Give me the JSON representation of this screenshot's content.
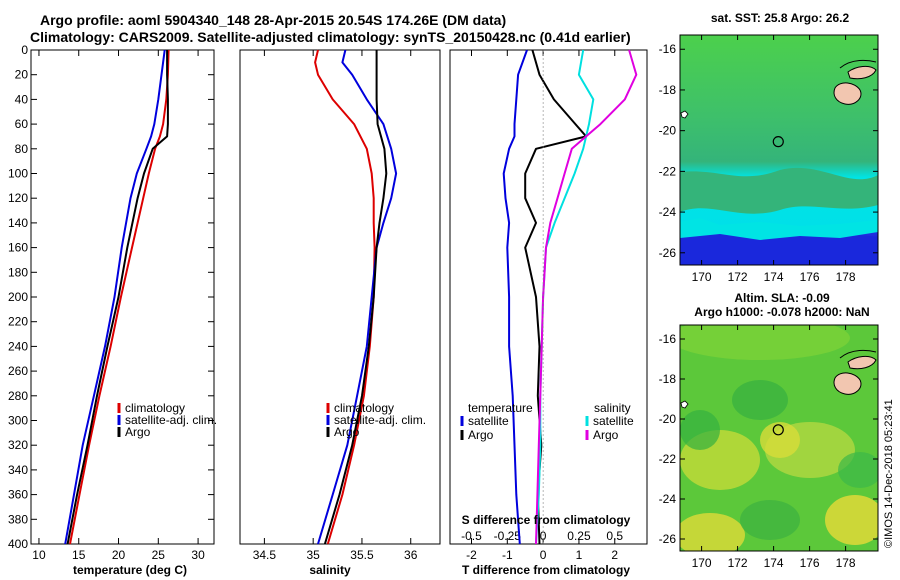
{
  "header": {
    "title_line1": "Argo profile: aoml 5904340_148 28-Apr-2015 20.54S 174.26E (DM data)",
    "title_line2": "Climatology: CARS2009. Satellite-adjusted climatology: synTS_20150428.nc (0.41d earlier)"
  },
  "colors": {
    "climatology": "#dd0000",
    "satellite": "#0000dd",
    "argo": "#000000",
    "sat_salinity": "#00e0e0",
    "argo_salinity_diff": "#e000e0"
  },
  "chart_data": [
    {
      "type": "line",
      "name": "temperature-profile",
      "xlabel": "temperature (deg C)",
      "ylabel": "",
      "xlim": [
        9,
        32
      ],
      "ylim": [
        400,
        0
      ],
      "xticks": [
        10,
        15,
        20,
        25,
        30
      ],
      "yticks": [
        0,
        20,
        40,
        60,
        80,
        100,
        120,
        140,
        160,
        180,
        200,
        220,
        240,
        260,
        280,
        300,
        320,
        340,
        360,
        380,
        400
      ],
      "legend": [
        "climatology",
        "satellite-adj. clim.",
        "Argo"
      ],
      "legend_position": "lower-right",
      "depth": [
        0,
        20,
        40,
        60,
        70,
        80,
        100,
        120,
        160,
        200,
        240,
        280,
        320,
        360,
        400
      ],
      "series": [
        {
          "name": "climatology",
          "color": "#dd0000",
          "x": [
            26.3,
            26.2,
            26.0,
            25.6,
            25.2,
            24.6,
            23.8,
            23.1,
            21.7,
            20.3,
            19.0,
            17.6,
            16.3,
            15.1,
            13.9
          ]
        },
        {
          "name": "satellite-adj. clim.",
          "color": "#0000dd",
          "x": [
            25.8,
            25.4,
            25.0,
            24.5,
            24.1,
            23.5,
            22.3,
            21.5,
            20.4,
            19.5,
            18.3,
            16.9,
            15.5,
            14.4,
            13.3
          ]
        },
        {
          "name": "Argo",
          "color": "#000000",
          "x": [
            26.1,
            26.1,
            26.2,
            26.2,
            26.1,
            24.3,
            23.2,
            22.4,
            21.1,
            20.0,
            18.6,
            17.3,
            16.1,
            14.8,
            13.6
          ]
        }
      ]
    },
    {
      "type": "line",
      "name": "salinity-profile",
      "xlabel": "salinity",
      "ylabel": "",
      "xlim": [
        34.25,
        36.3
      ],
      "ylim": [
        400,
        0
      ],
      "xticks": [
        34.5,
        35,
        35.5,
        36
      ],
      "legend": [
        "climatology",
        "satellite-adj. clim.",
        "Argo"
      ],
      "legend_position": "lower-right",
      "depth": [
        0,
        10,
        20,
        40,
        60,
        80,
        100,
        120,
        140,
        160,
        200,
        240,
        280,
        320,
        360,
        400
      ],
      "series": [
        {
          "name": "climatology",
          "color": "#dd0000",
          "x": [
            35.05,
            35.02,
            35.05,
            35.2,
            35.42,
            35.55,
            35.6,
            35.62,
            35.62,
            35.63,
            35.62,
            35.58,
            35.52,
            35.42,
            35.3,
            35.15
          ]
        },
        {
          "name": "satellite-adj. clim.",
          "color": "#0000dd",
          "x": [
            35.33,
            35.3,
            35.4,
            35.55,
            35.72,
            35.8,
            35.85,
            35.8,
            35.72,
            35.65,
            35.6,
            35.55,
            35.45,
            35.35,
            35.2,
            35.05
          ]
        },
        {
          "name": "Argo",
          "color": "#000000",
          "x": [
            35.65,
            35.65,
            35.65,
            35.65,
            35.66,
            35.73,
            35.75,
            35.72,
            35.68,
            35.65,
            35.62,
            35.57,
            35.5,
            35.4,
            35.27,
            35.12
          ]
        }
      ]
    },
    {
      "type": "line",
      "name": "difference-profile",
      "xlabel": "T difference from climatology",
      "x2label": "S difference from climatology",
      "xlim": [
        -2.6,
        2.9
      ],
      "x2lim": [
        -0.65,
        0.725
      ],
      "ylim": [
        400,
        0
      ],
      "xticks": [
        -2,
        -1,
        0,
        1,
        2
      ],
      "x2ticks": [
        -0.5,
        -0.25,
        0,
        0.25,
        0.5
      ],
      "x2tick_labels": [
        "-0.5",
        "-0.25",
        "0",
        "0.25",
        "0.5"
      ],
      "legend_temperature": {
        "heading": "temperature",
        "items": [
          "satellite",
          "Argo"
        ]
      },
      "legend_salinity": {
        "heading": "salinity",
        "items": [
          "satellite",
          "Argo"
        ]
      },
      "depth": [
        0,
        20,
        40,
        60,
        70,
        80,
        100,
        120,
        140,
        160,
        200,
        240,
        280,
        320,
        360,
        400
      ],
      "series": [
        {
          "name": "temperature satellite",
          "color": "#0000dd",
          "axis": "T",
          "x": [
            -0.45,
            -0.7,
            -0.75,
            -0.8,
            -0.8,
            -0.95,
            -1.1,
            -1.05,
            -0.95,
            -1.0,
            -0.95,
            -0.95,
            -0.85,
            -0.8,
            -0.75,
            -0.65
          ]
        },
        {
          "name": "temperature Argo",
          "color": "#000000",
          "axis": "T",
          "x": [
            -0.3,
            -0.1,
            0.3,
            0.9,
            1.2,
            -0.2,
            -0.5,
            -0.5,
            -0.2,
            -0.5,
            -0.2,
            -0.1,
            -0.15,
            -0.05,
            -0.15,
            -0.1
          ]
        },
        {
          "name": "salinity satellite",
          "color": "#00e0e0",
          "axis": "S",
          "x": [
            0.28,
            0.25,
            0.35,
            0.32,
            0.3,
            0.28,
            0.22,
            0.15,
            0.08,
            0.02,
            0.0,
            -0.01,
            -0.02,
            -0.02,
            -0.03,
            -0.05
          ]
        },
        {
          "name": "salinity Argo",
          "color": "#e000e0",
          "axis": "S",
          "x": [
            0.6,
            0.65,
            0.57,
            0.4,
            0.3,
            0.2,
            0.15,
            0.1,
            0.05,
            0.02,
            0.0,
            -0.01,
            -0.02,
            -0.03,
            -0.04,
            -0.05
          ]
        }
      ]
    }
  ],
  "sst_map": {
    "title": "sat. SST: 25.8 Argo: 26.2",
    "xticks": [
      170,
      172,
      174,
      176,
      178
    ],
    "yticks": [
      -16,
      -18,
      -20,
      -22,
      -24,
      -26
    ],
    "xlim": [
      168.8,
      179.8
    ],
    "ylim": [
      -26.6,
      -15.3
    ],
    "profile_lon": 174.26,
    "profile_lat": -20.54
  },
  "sla_map": {
    "title_line1": "Altim. SLA: -0.09",
    "title_line2": "Argo h1000: -0.078 h2000: NaN",
    "xticks": [
      170,
      172,
      174,
      176,
      178
    ],
    "yticks": [
      -16,
      -18,
      -20,
      -22,
      -24,
      -26
    ],
    "xlim": [
      168.8,
      179.8
    ],
    "ylim": [
      -26.6,
      -15.3
    ],
    "profile_lon": 174.26,
    "profile_lat": -20.54
  },
  "credit": "©IMOS 14-Dec-2018 05:23:41"
}
